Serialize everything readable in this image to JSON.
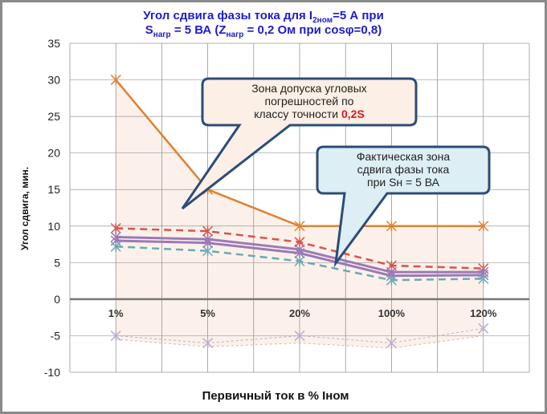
{
  "chart_data": {
    "type": "line",
    "title_line1": "Угол сдвига фазы тока  для I",
    "title_sub1": "2ном",
    "title_line1_end": "=5 А при",
    "title_line2_s": "S",
    "title_sub2": "нагр",
    "title_line2_mid": " = 5 ВА (Z",
    "title_sub3": "нагр",
    "title_line2_end": " = 0,2 Ом при cosφ=0,8)",
    "xlabel": "Первичный ток в % Iном",
    "ylabel": "Угол сдвига, мин.",
    "categories": [
      "1%",
      "5%",
      "20%",
      "100%",
      "120%"
    ],
    "ylim": [
      -10,
      35
    ],
    "yticks": [
      35,
      30,
      25,
      20,
      15,
      10,
      5,
      0,
      -5,
      -10
    ],
    "grid": true,
    "series": [
      {
        "values": [
          30,
          15,
          10,
          10,
          10
        ],
        "color": "#e0812e",
        "style": "solid"
      },
      {
        "values": [
          9.7,
          9.3,
          7.8,
          4.6,
          4.2
        ],
        "color": "#d9534a",
        "style": "dashed"
      },
      {
        "values": [
          8.5,
          8.2,
          6.8,
          3.7,
          3.7
        ],
        "color": "#9b7ab5",
        "style": "solid"
      },
      {
        "values": [
          8.0,
          7.7,
          6.3,
          3.2,
          3.3
        ],
        "color": "#9b7ab5",
        "style": "solid"
      },
      {
        "values": [
          7.2,
          6.6,
          5.2,
          2.6,
          2.8
        ],
        "color": "#6aaab5",
        "style": "dashed"
      },
      {
        "values": [
          -5,
          -6,
          -5,
          -6,
          -4
        ],
        "color": "#b8b0d0",
        "style": "dotted"
      },
      {
        "values": [
          -5.5,
          -6.5,
          -6,
          -6.7,
          -5
        ],
        "color": "#d8b8b0",
        "style": "dotted"
      }
    ],
    "zone_fill": "#fbeee6",
    "annotations": [
      {
        "lines": [
          "Зона допуска угловых",
          "погрешностей  по",
          "классу  точности "
        ],
        "highlight": "0,2S",
        "highlight_color": "#e0141e"
      },
      {
        "lines": [
          "Фактическая зона",
          "сдвига фазы тока",
          "при  Sн = 5 ВА"
        ]
      }
    ]
  }
}
